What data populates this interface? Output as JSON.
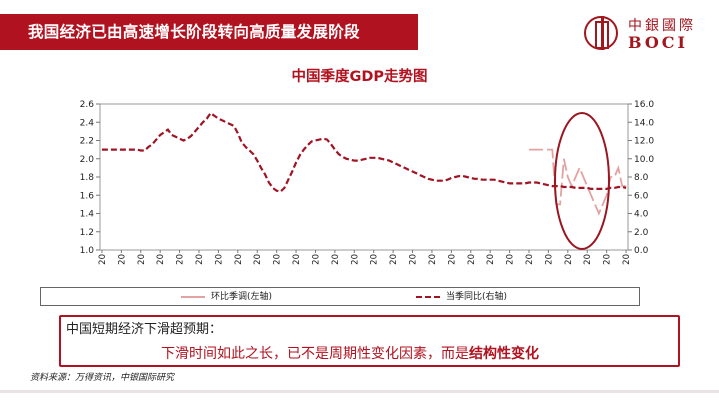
{
  "header": {
    "title": "我国经济已由高速增长阶段转向高质量发展阶段",
    "logo_cn": "中銀國際",
    "logo_en": "BOCI"
  },
  "chart_data": {
    "type": "line",
    "title": "中国季度GDP走势图",
    "x": [
      "20",
      "20",
      "20",
      "20",
      "20",
      "20",
      "20",
      "20",
      "20",
      "20",
      "20",
      "20",
      "20",
      "20",
      "20",
      "20",
      "20",
      "20",
      "20",
      "20",
      "20",
      "20",
      "20",
      "20",
      "20",
      "20",
      "20",
      "20",
      "20",
      "20",
      "20",
      "20",
      "20",
      "20",
      "20",
      "20",
      "20",
      "20",
      "20",
      "20",
      "20",
      "20",
      "20",
      "20",
      "20",
      "20",
      "20",
      "20",
      "20",
      "20",
      "20",
      "20",
      "20",
      "20",
      "20",
      "20",
      "20",
      "20",
      "20",
      "20",
      "20",
      "20",
      "20",
      "20",
      "20",
      "20",
      "20",
      "20",
      "20",
      "20",
      "20",
      "20",
      "20",
      "20",
      "20",
      "20",
      "20",
      "20",
      "20",
      "20",
      "20",
      "20",
      "20",
      "20",
      "20",
      "20",
      "20",
      "20",
      "20",
      "20",
      "20",
      "20",
      "20",
      "20",
      "20",
      "20",
      "20",
      "20",
      "20",
      "20",
      "20",
      "20",
      "20",
      "20",
      "20",
      "20",
      "20",
      "20",
      "20",
      "20",
      "20",
      "20",
      "20",
      "20",
      "20",
      "20",
      "20",
      "20",
      "20",
      "20",
      "20",
      "20",
      "20",
      "20",
      "20",
      "20",
      "20",
      "20",
      "20",
      "20",
      "20",
      "20",
      "20",
      "20",
      "20",
      "20"
    ],
    "y_left_ticks": [
      "1.0",
      "1.2",
      "1.4",
      "1.6",
      "1.8",
      "2.0",
      "2.2",
      "2.4",
      "2.6"
    ],
    "y_right_ticks": [
      "0.0",
      "2.0",
      "4.0",
      "6.0",
      "8.0",
      "10.0",
      "12.0",
      "14.0",
      "16.0"
    ],
    "ylim_left": [
      1.0,
      2.6
    ],
    "ylim_right": [
      0.0,
      16.0
    ],
    "series": [
      {
        "name": "环比季调(左轴)",
        "axis": "left",
        "color": "#e3a2a2",
        "style": "solid",
        "values": [
          null,
          null,
          null,
          null,
          null,
          null,
          null,
          null,
          null,
          null,
          null,
          null,
          null,
          null,
          null,
          null,
          null,
          null,
          null,
          null,
          null,
          null,
          null,
          null,
          null,
          null,
          null,
          null,
          null,
          null,
          null,
          null,
          null,
          null,
          null,
          null,
          null,
          null,
          null,
          null,
          null,
          null,
          null,
          null,
          null,
          null,
          null,
          null,
          null,
          null,
          null,
          null,
          null,
          null,
          null,
          null,
          null,
          null,
          null,
          null,
          null,
          null,
          null,
          null,
          null,
          null,
          null,
          null,
          null,
          null,
          null,
          null,
          null,
          null,
          null,
          null,
          null,
          null,
          null,
          null,
          null,
          null,
          null,
          null,
          null,
          null,
          null,
          null,
          null,
          null,
          null,
          null,
          null,
          null,
          null,
          null,
          null,
          null,
          null,
          null,
          null,
          null,
          null,
          null,
          null,
          null,
          null,
          null,
          null,
          null,
          2.1,
          2.1,
          2.1,
          2.1,
          2.1,
          2.1,
          2.1,
          1.5,
          1.5,
          2.0,
          1.8,
          1.7,
          1.8,
          1.9,
          1.8,
          1.7,
          1.6,
          1.5,
          1.4,
          1.5,
          1.6,
          1.8,
          1.8,
          1.9,
          1.7,
          1.7
        ]
      },
      {
        "name": "当季同比(右轴)",
        "axis": "right",
        "color": "#a01423",
        "style": "dashed",
        "values": [
          11.0,
          11.0,
          11.0,
          11.0,
          11.0,
          11.0,
          11.0,
          11.0,
          11.0,
          11.0,
          10.9,
          10.9,
          11.3,
          11.6,
          12.1,
          12.6,
          12.9,
          13.2,
          12.6,
          12.4,
          12.2,
          12.0,
          12.2,
          12.5,
          13.0,
          13.5,
          14.0,
          14.4,
          15.0,
          14.7,
          14.4,
          14.2,
          14.0,
          13.8,
          13.6,
          12.8,
          11.8,
          11.3,
          10.9,
          10.5,
          9.8,
          9.0,
          8.3,
          7.4,
          6.8,
          6.5,
          6.4,
          6.8,
          7.7,
          8.6,
          9.6,
          10.4,
          11.0,
          11.5,
          11.9,
          12.0,
          12.1,
          12.2,
          12.1,
          11.6,
          11.0,
          10.5,
          10.2,
          10.0,
          9.9,
          9.8,
          9.8,
          9.9,
          10.0,
          10.1,
          10.1,
          10.1,
          10.0,
          9.9,
          9.8,
          9.6,
          9.4,
          9.2,
          9.0,
          8.8,
          8.6,
          8.4,
          8.2,
          8.0,
          7.8,
          7.7,
          7.6,
          7.6,
          7.6,
          7.7,
          7.9,
          8.0,
          8.1,
          8.1,
          8.0,
          7.9,
          7.8,
          7.8,
          7.7,
          7.7,
          7.7,
          7.7,
          7.6,
          7.5,
          7.4,
          7.3,
          7.3,
          7.3,
          7.3,
          7.3,
          7.4,
          7.4,
          7.4,
          7.3,
          7.2,
          7.1,
          7.0,
          7.0,
          7.0,
          6.9,
          6.9,
          6.9,
          6.8,
          6.8,
          6.8,
          6.8,
          6.7,
          6.7,
          6.7,
          6.7,
          6.7,
          6.8,
          6.8,
          6.9,
          6.9,
          6.8
        ]
      }
    ],
    "highlight": "ellipse",
    "legend_position": "bottom"
  },
  "conclusion": {
    "heading": "中国短期经济下滑超预期：",
    "body_prefix": "下滑时间如此之长，已不是周期性变化因素，而是",
    "body_emphasis": "结构性变化"
  },
  "source": "资料来源：万得资讯，中银国际研究",
  "colors": {
    "brand_red": "#b1121f",
    "dashed_series": "#a01423",
    "solid_series": "#e3a2a2",
    "highlight_ellipse": "#9a1620"
  }
}
